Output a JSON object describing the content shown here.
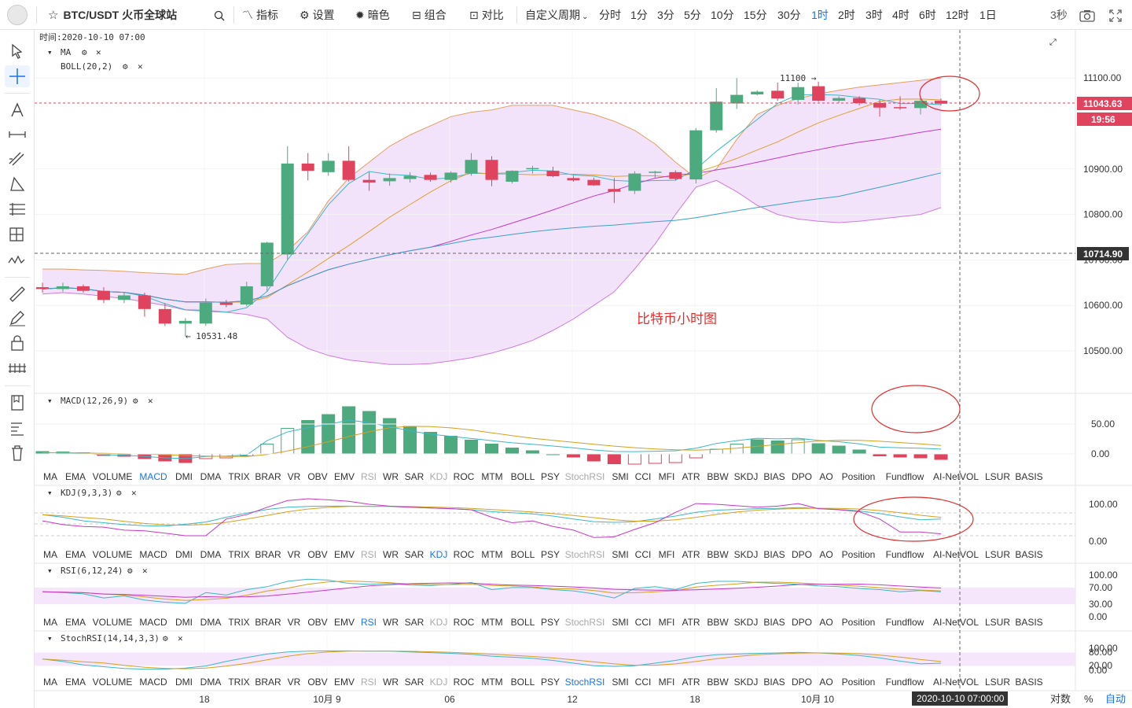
{
  "topbar": {
    "symbol": "BTC/USDT 火币全球站",
    "indicators_label": "指标",
    "settings_label": "设置",
    "dark_label": "暗色",
    "combo_label": "组合",
    "compare_label": "对比",
    "custom_period_label": "自定义周期",
    "periods": [
      "分时",
      "1分",
      "3分",
      "5分",
      "10分",
      "15分",
      "30分",
      "1时",
      "2时",
      "3时",
      "4时",
      "6时",
      "12时",
      "1日"
    ],
    "active_period": "1时",
    "refresh": "3秒"
  },
  "main_chart": {
    "time_label": "时间:2020-10-10 07:00",
    "ma_label": "MA",
    "boll_label": "BOLL(20,2)",
    "annotation": "比特币小时图",
    "high_label": "11100 →",
    "low_label": "← 10531.48",
    "price_badge": "11043.63",
    "countdown_badge": "19:56",
    "crosshair_badge": "10714.90",
    "time_badge": "2020-10-10 07:00:00"
  },
  "sub_panels": {
    "macd_label": "MACD(12,26,9)",
    "kdj_label": "KDJ(9,3,3)",
    "rsi_label": "RSI(6,12,24)",
    "stochrsi_label": "StochRSI(14,14,3,3)",
    "indicator_list": [
      "MA",
      "EMA",
      "VOLUME",
      "MACD",
      "DMI",
      "DMA",
      "TRIX",
      "BRAR",
      "VR",
      "OBV",
      "EMV",
      "RSI",
      "WR",
      "SAR",
      "KDJ",
      "ROC",
      "MTM",
      "BOLL",
      "PSY",
      "StochRSI",
      "SMI",
      "CCI",
      "MFI",
      "ATR",
      "BBW",
      "SKDJ",
      "BIAS",
      "DPO",
      "AO",
      "Position",
      "Fundflow",
      "AI-NetVOL",
      "LSUR",
      "BASIS"
    ],
    "dim_items": [
      "RSI",
      "KDJ",
      "StochRSI"
    ],
    "selected_rows": [
      "MACD",
      "KDJ",
      "RSI",
      "StochRSI"
    ]
  },
  "bottom": {
    "log_label": "对数",
    "pct_label": "%",
    "auto_label": "自动"
  },
  "colors": {
    "up": "#4daa7f",
    "down": "#e0435e",
    "boll": "#d07ae0",
    "ma5": "#3db7c4",
    "ma10": "#e0a030",
    "ma20": "#c43ac4",
    "active": "#1a73e8",
    "ann": "#e03030"
  },
  "chart_data": {
    "type": "candlestick",
    "x_tick_labels": [
      "18",
      "10月 9",
      "06",
      "12",
      "18",
      "10月 10"
    ],
    "y_tick_labels": [
      "11100.00",
      "10900.00",
      "10800.00",
      "10700.00",
      "10600.00",
      "10500.00"
    ],
    "ylim": [
      10430,
      11180
    ],
    "candles": [
      {
        "o": 10640,
        "h": 10650,
        "l": 10628,
        "c": 10636
      },
      {
        "o": 10636,
        "h": 10650,
        "l": 10630,
        "c": 10642
      },
      {
        "o": 10642,
        "h": 10646,
        "l": 10628,
        "c": 10632
      },
      {
        "o": 10632,
        "h": 10640,
        "l": 10605,
        "c": 10612
      },
      {
        "o": 10612,
        "h": 10628,
        "l": 10605,
        "c": 10622
      },
      {
        "o": 10622,
        "h": 10628,
        "l": 10575,
        "c": 10592
      },
      {
        "o": 10592,
        "h": 10605,
        "l": 10555,
        "c": 10560
      },
      {
        "o": 10560,
        "h": 10572,
        "l": 10531.48,
        "c": 10566
      },
      {
        "o": 10560,
        "h": 10615,
        "l": 10555,
        "c": 10606
      },
      {
        "o": 10606,
        "h": 10612,
        "l": 10596,
        "c": 10601
      },
      {
        "o": 10602,
        "h": 10652,
        "l": 10598,
        "c": 10642
      },
      {
        "o": 10642,
        "h": 10740,
        "l": 10630,
        "c": 10738
      },
      {
        "o": 10712,
        "h": 10950,
        "l": 10700,
        "c": 10912
      },
      {
        "o": 10912,
        "h": 10935,
        "l": 10875,
        "c": 10896
      },
      {
        "o": 10893,
        "h": 10935,
        "l": 10885,
        "c": 10918
      },
      {
        "o": 10918,
        "h": 10950,
        "l": 10872,
        "c": 10876
      },
      {
        "o": 10876,
        "h": 10893,
        "l": 10852,
        "c": 10870
      },
      {
        "o": 10873,
        "h": 10890,
        "l": 10863,
        "c": 10880
      },
      {
        "o": 10878,
        "h": 10893,
        "l": 10870,
        "c": 10885
      },
      {
        "o": 10887,
        "h": 10892,
        "l": 10872,
        "c": 10876
      },
      {
        "o": 10876,
        "h": 10895,
        "l": 10870,
        "c": 10892
      },
      {
        "o": 10890,
        "h": 10935,
        "l": 10885,
        "c": 10920
      },
      {
        "o": 10920,
        "h": 10928,
        "l": 10862,
        "c": 10876
      },
      {
        "o": 10872,
        "h": 10897,
        "l": 10868,
        "c": 10896
      },
      {
        "o": 10900,
        "h": 10907,
        "l": 10890,
        "c": 10902
      },
      {
        "o": 10896,
        "h": 10905,
        "l": 10882,
        "c": 10884
      },
      {
        "o": 10880,
        "h": 10885,
        "l": 10872,
        "c": 10875
      },
      {
        "o": 10876,
        "h": 10881,
        "l": 10863,
        "c": 10864
      },
      {
        "o": 10856,
        "h": 10880,
        "l": 10825,
        "c": 10850
      },
      {
        "o": 10852,
        "h": 10895,
        "l": 10845,
        "c": 10890
      },
      {
        "o": 10892,
        "h": 10896,
        "l": 10880,
        "c": 10894
      },
      {
        "o": 10893,
        "h": 10897,
        "l": 10875,
        "c": 10878
      },
      {
        "o": 10877,
        "h": 10990,
        "l": 10868,
        "c": 10985
      },
      {
        "o": 10985,
        "h": 11078,
        "l": 10980,
        "c": 11048
      },
      {
        "o": 11044,
        "h": 11100,
        "l": 11032,
        "c": 11063
      },
      {
        "o": 11064,
        "h": 11073,
        "l": 11062,
        "c": 11070
      },
      {
        "o": 11072,
        "h": 11090,
        "l": 11050,
        "c": 11055
      },
      {
        "o": 11052,
        "h": 11090,
        "l": 11042,
        "c": 11080
      },
      {
        "o": 11082,
        "h": 11092,
        "l": 11048,
        "c": 11050
      },
      {
        "o": 11050,
        "h": 11060,
        "l": 11045,
        "c": 11056
      },
      {
        "o": 11056,
        "h": 11060,
        "l": 11040,
        "c": 11045
      },
      {
        "o": 11045,
        "h": 11052,
        "l": 11015,
        "c": 11035
      },
      {
        "o": 11036,
        "h": 11060,
        "l": 11030,
        "c": 11034
      },
      {
        "o": 11034,
        "h": 11060,
        "l": 11020,
        "c": 11050
      },
      {
        "o": 11050,
        "h": 11055,
        "l": 11040,
        "c": 11043.63
      }
    ],
    "boll_upper": [
      10680,
      10680,
      10678,
      10677,
      10675,
      10672,
      10670,
      10668,
      10680,
      10690,
      10692,
      10692,
      10720,
      10762,
      10830,
      10880,
      10915,
      10950,
      10975,
      10995,
      11015,
      11025,
      11030,
      11040,
      11040,
      11040,
      11030,
      11020,
      11005,
      10985,
      10955,
      10915,
      10880,
      10900,
      10965,
      11020,
      11040,
      11055,
      11065,
      11073,
      11080,
      11085,
      11090,
      11095,
      11100
    ],
    "boll_lower": [
      10625,
      10628,
      10625,
      10620,
      10615,
      10608,
      10600,
      10590,
      10587,
      10585,
      10580,
      10570,
      10530,
      10505,
      10490,
      10480,
      10475,
      10470,
      10470,
      10472,
      10478,
      10485,
      10495,
      10508,
      10523,
      10545,
      10570,
      10600,
      10630,
      10680,
      10735,
      10800,
      10860,
      10875,
      10850,
      10820,
      10800,
      10790,
      10785,
      10782,
      10785,
      10790,
      10795,
      10800,
      10815
    ],
    "macd_hist": [
      6,
      5,
      3,
      -4,
      -6,
      -12,
      -18,
      -22,
      -12,
      -10,
      -5,
      25,
      65,
      85,
      100,
      120,
      108,
      90,
      70,
      55,
      45,
      35,
      25,
      15,
      8,
      0,
      -8,
      -18,
      -25,
      -26,
      -24,
      -22,
      -10,
      12,
      25,
      36,
      33,
      36,
      26,
      20,
      10,
      -5,
      -8,
      -10,
      -14
    ],
    "kdj_k": [
      72,
      65,
      55,
      50,
      45,
      42,
      41,
      46,
      52,
      65,
      76,
      86,
      92,
      94,
      95,
      95,
      94,
      94,
      92,
      90,
      88,
      85,
      80,
      77,
      74,
      68,
      60,
      53,
      51,
      53,
      60,
      68,
      78,
      84,
      86,
      88,
      89,
      91,
      89,
      86,
      82,
      75,
      66,
      58,
      60
    ],
    "kdj_j": [
      55,
      45,
      40,
      38,
      30,
      28,
      22,
      15,
      15,
      60,
      72,
      92,
      110,
      115,
      112,
      108,
      100,
      95,
      92,
      90,
      88,
      85,
      65,
      50,
      55,
      40,
      30,
      10,
      12,
      32,
      50,
      78,
      102,
      100,
      96,
      92,
      95,
      102,
      88,
      85,
      80,
      60,
      25,
      25,
      20
    ],
    "rsi6": [
      60,
      58,
      55,
      45,
      50,
      40,
      35,
      32,
      58,
      52,
      65,
      72,
      85,
      90,
      88,
      80,
      78,
      80,
      76,
      75,
      78,
      82,
      65,
      70,
      70,
      65,
      62,
      55,
      45,
      68,
      72,
      65,
      80,
      85,
      85,
      82,
      80,
      78,
      74,
      72,
      68,
      65,
      60,
      63,
      60
    ]
  }
}
